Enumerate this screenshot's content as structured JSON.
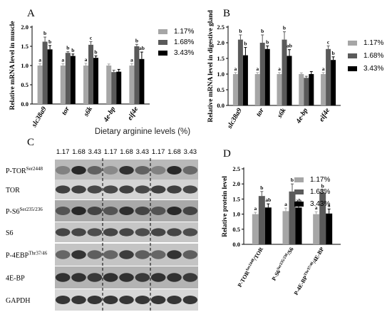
{
  "panel_letters": [
    "A",
    "B",
    "C",
    "D"
  ],
  "legend_labels": [
    "1.17%",
    "1.68%",
    "3.43%"
  ],
  "colors": {
    "c117": "#a6a6a6",
    "c168": "#5a5a5a",
    "c343": "#000000"
  },
  "blot": {
    "title": "Dietary arginine levels (%)",
    "lane_labels": [
      "1.17",
      "1.68",
      "3.43",
      "1.17",
      "1.68",
      "3.43",
      "1.17",
      "1.68",
      "3.43"
    ],
    "rows": [
      {
        "label": "P-TOR",
        "sup": "Ser2448"
      },
      {
        "label": "TOR",
        "sup": ""
      },
      {
        "label": "P-S6",
        "sup": "Ser235/236"
      },
      {
        "label": "S6",
        "sup": ""
      },
      {
        "label": "P-4EBP",
        "sup": "Thr37/46"
      },
      {
        "label": "4E-BP",
        "sup": ""
      },
      {
        "label": "GAPDH",
        "sup": ""
      }
    ]
  },
  "chart_data": [
    {
      "panel": "A",
      "type": "bar",
      "ylabel": "Relative mRNA level in muscle",
      "ylim": [
        0,
        2.0
      ],
      "yticks": [
        "0.0",
        "0.5",
        "1.0",
        "1.5",
        "2.0"
      ],
      "categories": [
        "slc38a9",
        "tor",
        "s6k",
        "4e-bp",
        "eif4e"
      ],
      "series": [
        {
          "name": "1.17%",
          "values": [
            1.0,
            1.0,
            1.0,
            1.0,
            1.0
          ],
          "errors": [
            0.05,
            0.05,
            0.06,
            0.04,
            0.05
          ],
          "letters": [
            "a",
            "a",
            "a",
            "",
            "a"
          ]
        },
        {
          "name": "1.68%",
          "values": [
            1.62,
            1.33,
            1.54,
            0.83,
            1.5
          ],
          "errors": [
            0.12,
            0.03,
            0.08,
            0.05,
            0.05
          ],
          "letters": [
            "b",
            "b",
            "c",
            "",
            "b"
          ]
        },
        {
          "name": "3.43%",
          "values": [
            1.42,
            1.25,
            1.2,
            0.84,
            1.17
          ],
          "errors": [
            0.1,
            0.05,
            0.05,
            0.06,
            0.18
          ],
          "letters": [
            "b",
            "b",
            "b",
            "",
            "ab"
          ]
        }
      ]
    },
    {
      "panel": "B",
      "type": "bar",
      "ylabel": "Relative mRNA level in digestive gland",
      "ylim": [
        0,
        2.5
      ],
      "yticks": [
        "0.0",
        "0.5",
        "1.0",
        "1.5",
        "2.0",
        "2.5"
      ],
      "categories": [
        "slc38a9",
        "tor",
        "s6k",
        "4e-bp",
        "eif4e"
      ],
      "series": [
        {
          "name": "1.17%",
          "values": [
            1.0,
            1.0,
            1.0,
            1.0,
            1.0
          ],
          "errors": [
            0.05,
            0.05,
            0.05,
            0.04,
            0.05
          ],
          "letters": [
            "a",
            "a",
            "a",
            "",
            "a"
          ]
        },
        {
          "name": "1.68%",
          "values": [
            2.1,
            2.0,
            2.1,
            0.88,
            1.8
          ],
          "errors": [
            0.15,
            0.25,
            0.25,
            0.05,
            0.1
          ],
          "letters": [
            "b",
            "b",
            "b",
            "",
            "c"
          ]
        },
        {
          "name": "3.43%",
          "values": [
            1.6,
            1.8,
            1.58,
            1.0,
            1.45
          ],
          "errors": [
            0.25,
            0.1,
            0.2,
            0.08,
            0.1
          ],
          "letters": [
            "b",
            "b",
            "ab",
            "",
            "b"
          ]
        }
      ]
    },
    {
      "panel": "D",
      "type": "bar",
      "ylabel": "Relative protein level",
      "ylim": [
        0,
        2.5
      ],
      "yticks": [
        "0.0",
        "0.5",
        "1.0",
        "1.5",
        "2.0",
        "2.5"
      ],
      "categories": [
        {
          "main": "P-TOR",
          "sup": "Ser2448",
          "tail": "/TOR"
        },
        {
          "main": "P-S6",
          "sup": "Ser235/236",
          "tail": "/S6"
        },
        {
          "main": "P-4E-BP",
          "sup": "Thr37/46",
          "tail": "/4E-BP"
        }
      ],
      "series": [
        {
          "name": "1.17%",
          "values": [
            1.0,
            1.1,
            1.0
          ],
          "errors": [
            0.06,
            0.1,
            0.08
          ],
          "letters": [
            "a",
            "a",
            "a"
          ]
        },
        {
          "name": "1.68%",
          "values": [
            1.6,
            1.75,
            1.72
          ],
          "errors": [
            0.15,
            0.25,
            0.08
          ],
          "letters": [
            "b",
            "b",
            "b"
          ]
        },
        {
          "name": "3.43%",
          "values": [
            1.22,
            1.22,
            1.02
          ],
          "errors": [
            0.12,
            0.1,
            0.15
          ],
          "letters": [
            "ab",
            "ab",
            "a"
          ]
        }
      ]
    }
  ]
}
